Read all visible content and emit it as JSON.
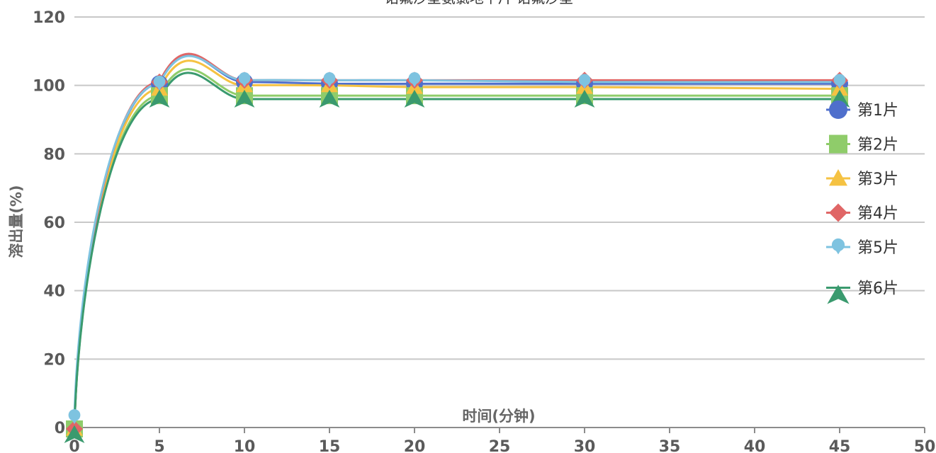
{
  "chart_data": {
    "type": "line",
    "title": "诺氟沙星氨氯地平片 诺氟沙星",
    "xlabel": "时间(分钟)",
    "ylabel": "溶出量(%)",
    "xlim": [
      0,
      50
    ],
    "ylim": [
      0,
      120
    ],
    "x_ticks": [
      "0",
      "5",
      "10",
      "15",
      "20",
      "25",
      "30",
      "35",
      "40",
      "45",
      "50"
    ],
    "y_ticks": [
      "0",
      "20",
      "40",
      "60",
      "80",
      "100",
      "120"
    ],
    "x": [
      0,
      5,
      10,
      15,
      20,
      30,
      45
    ],
    "grid": true,
    "legend_position": "right",
    "series": [
      {
        "name": "第1片",
        "color": "#4f6fcc",
        "marker": "circle",
        "values": [
          0,
          100.5,
          101,
          100.5,
          100.5,
          100.5,
          100.5
        ]
      },
      {
        "name": "第2片",
        "color": "#8fcc6a",
        "marker": "square",
        "values": [
          0,
          97,
          97,
          97,
          97,
          97,
          97
        ]
      },
      {
        "name": "第3片",
        "color": "#f5c242",
        "marker": "triangle",
        "values": [
          0,
          99,
          100,
          100,
          99.5,
          99.5,
          99
        ]
      },
      {
        "name": "第4片",
        "color": "#e06666",
        "marker": "diamond",
        "values": [
          0,
          101,
          101.5,
          101.5,
          101.5,
          101.5,
          101.5
        ]
      },
      {
        "name": "第5片",
        "color": "#7ec3e0",
        "marker": "pin",
        "values": [
          3,
          100.5,
          101.5,
          101.5,
          101.5,
          101,
          101
        ]
      },
      {
        "name": "第6片",
        "color": "#3a9a6e",
        "marker": "arrow",
        "values": [
          0,
          96,
          96,
          96,
          96,
          96,
          96
        ]
      }
    ]
  }
}
